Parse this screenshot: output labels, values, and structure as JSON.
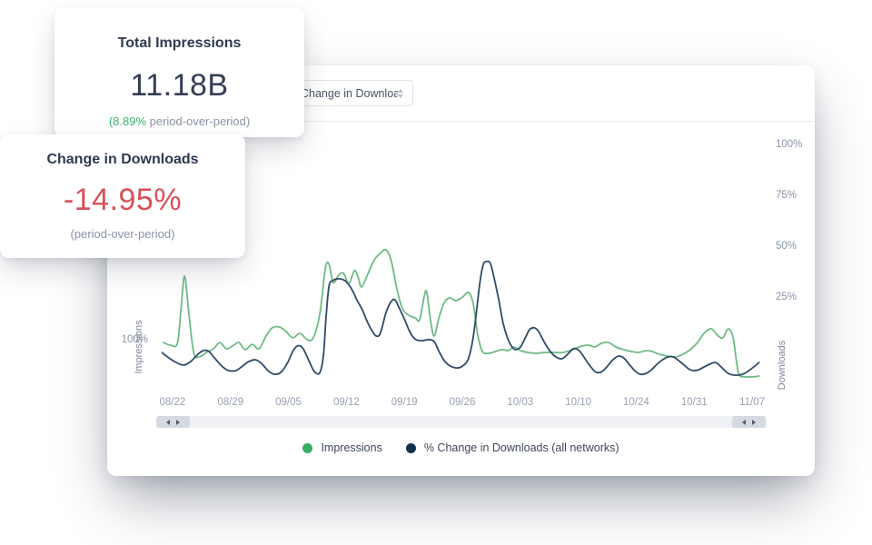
{
  "cards": {
    "impressions": {
      "title": "Total Impressions",
      "value": "11.18B",
      "change_value": "(8.89%",
      "change_suffix": " period-over-period)"
    },
    "downloads": {
      "title": "Change in Downloads",
      "value": "-14.95%",
      "subtitle": "(period-over-period)"
    }
  },
  "panel": {
    "dropdown": {
      "value": "Change in Downloads"
    },
    "left_axis": {
      "tick": "100%",
      "label": "Impressions"
    },
    "right_axis": {
      "label": "Downloads",
      "ticks": [
        {
          "label": "100%",
          "value": 100
        },
        {
          "label": "75%",
          "value": 75
        },
        {
          "label": "50%",
          "value": 50
        },
        {
          "label": "25%",
          "value": 25
        }
      ]
    },
    "legend": [
      {
        "label": "Impressions",
        "color": "#36ae66"
      },
      {
        "label": "% Change in Downloads (all networks)",
        "color": "#14324f"
      }
    ]
  },
  "chart_data": {
    "type": "line",
    "title": "",
    "x_ticks": [
      "08/22",
      "08/29",
      "09/05",
      "09/12",
      "09/19",
      "09/26",
      "10/03",
      "10/10",
      "10/24",
      "10/31",
      "11/07"
    ],
    "y_axis_right": {
      "unit": "%",
      "ticks": [
        100,
        75,
        50,
        25
      ],
      "range": [
        -20,
        110
      ]
    },
    "grid": false,
    "legend_position": "bottom",
    "series": [
      {
        "name": "Impressions",
        "axis": "left",
        "color": "#6fba86",
        "points": [
          [
            0.3,
            3.1
          ],
          [
            1.5,
            1.8
          ],
          [
            2.6,
            2.7
          ],
          [
            3.2,
            19.6
          ],
          [
            3.8,
            35.7
          ],
          [
            4.5,
            17.4
          ],
          [
            5.3,
            -1.8
          ],
          [
            6.2,
            -4
          ],
          [
            7.4,
            -1.8
          ],
          [
            8.6,
            0
          ],
          [
            9.6,
            3.1
          ],
          [
            10.7,
            0
          ],
          [
            11.7,
            1.3
          ],
          [
            12.8,
            3.1
          ],
          [
            13.8,
            -0.4
          ],
          [
            15,
            2.2
          ],
          [
            16.1,
            0
          ],
          [
            17.3,
            6.3
          ],
          [
            18.3,
            10.3
          ],
          [
            19.5,
            10.7
          ],
          [
            20.6,
            8.5
          ],
          [
            21.7,
            5.4
          ],
          [
            22.9,
            7.6
          ],
          [
            24.1,
            4.5
          ],
          [
            25.1,
            5.4
          ],
          [
            26.2,
            17.4
          ],
          [
            27.1,
            39.7
          ],
          [
            27.7,
            41.5
          ],
          [
            28.4,
            32.6
          ],
          [
            29.3,
            36.2
          ],
          [
            30.1,
            37.1
          ],
          [
            31,
            32.1
          ],
          [
            31.9,
            38.4
          ],
          [
            32.5,
            35.3
          ],
          [
            33.1,
            30.4
          ],
          [
            34.1,
            36.6
          ],
          [
            35.2,
            43.8
          ],
          [
            36.2,
            46.9
          ],
          [
            37.1,
            48.7
          ],
          [
            38,
            43.3
          ],
          [
            38.9,
            29.9
          ],
          [
            39.8,
            20.1
          ],
          [
            40.9,
            16.5
          ],
          [
            42,
            15.2
          ],
          [
            42.7,
            14.3
          ],
          [
            43.5,
            26.3
          ],
          [
            43.9,
            27.7
          ],
          [
            44.5,
            14.3
          ],
          [
            45.1,
            6.3
          ],
          [
            45.9,
            15.2
          ],
          [
            46.8,
            22.8
          ],
          [
            47.7,
            25
          ],
          [
            48.7,
            23.7
          ],
          [
            49.8,
            25.4
          ],
          [
            50.8,
            27.7
          ],
          [
            51.6,
            21.9
          ],
          [
            52.3,
            7.1
          ],
          [
            53.1,
            -1.3
          ],
          [
            54.1,
            -2.2
          ],
          [
            55.3,
            -1.3
          ],
          [
            56.4,
            -0.4
          ],
          [
            57.4,
            -0.9
          ],
          [
            58.3,
            0.9
          ],
          [
            59.4,
            -0.9
          ],
          [
            60.6,
            -1.8
          ],
          [
            61.9,
            -2.2
          ],
          [
            63.5,
            -1.8
          ],
          [
            65,
            -1.8
          ],
          [
            66.5,
            -1.8
          ],
          [
            68,
            -0.4
          ],
          [
            69.5,
            1.3
          ],
          [
            70.7,
            1.8
          ],
          [
            71.7,
            0.9
          ],
          [
            72.8,
            2.7
          ],
          [
            74,
            3.1
          ],
          [
            75.2,
            0.9
          ],
          [
            76.5,
            -0.4
          ],
          [
            77.7,
            -1.3
          ],
          [
            78.9,
            -1.8
          ],
          [
            80.2,
            -0.9
          ],
          [
            81.2,
            -1.3
          ],
          [
            82.4,
            -2.7
          ],
          [
            83.8,
            -3.6
          ],
          [
            85,
            -4
          ],
          [
            86.3,
            -2.7
          ],
          [
            87.5,
            -0.4
          ],
          [
            88.7,
            3.1
          ],
          [
            89.9,
            8
          ],
          [
            91,
            9.8
          ],
          [
            92,
            6.7
          ],
          [
            92.9,
            5.4
          ],
          [
            93.8,
            9.8
          ],
          [
            94.6,
            5.4
          ],
          [
            95.2,
            -7.1
          ],
          [
            95.6,
            -12.9
          ],
          [
            96.5,
            -13.8
          ],
          [
            97.7,
            -13.8
          ],
          [
            98.9,
            -13.4
          ]
        ]
      },
      {
        "name": "% Change in Downloads (all networks)",
        "axis": "right",
        "color": "#2e4b68",
        "points": [
          [
            0,
            -1.8
          ],
          [
            1.2,
            -4.5
          ],
          [
            2.4,
            -6.7
          ],
          [
            3.6,
            -8
          ],
          [
            4.8,
            -6.3
          ],
          [
            6,
            -2.7
          ],
          [
            6.9,
            -0.9
          ],
          [
            7.8,
            -1.3
          ],
          [
            9,
            -5.4
          ],
          [
            10.1,
            -8.9
          ],
          [
            11.1,
            -10.7
          ],
          [
            12.3,
            -10.7
          ],
          [
            13.4,
            -8.5
          ],
          [
            14.4,
            -6.3
          ],
          [
            15.5,
            -5.4
          ],
          [
            16.5,
            -7.1
          ],
          [
            17.6,
            -10.7
          ],
          [
            18.6,
            -12.5
          ],
          [
            19.7,
            -11.6
          ],
          [
            20.8,
            -7.1
          ],
          [
            21.7,
            -1.3
          ],
          [
            22.4,
            1.3
          ],
          [
            23.2,
            0.9
          ],
          [
            23.9,
            -2.7
          ],
          [
            24.7,
            -8
          ],
          [
            25.4,
            -11.6
          ],
          [
            26.2,
            -11.6
          ],
          [
            26.8,
            -2.7
          ],
          [
            27.2,
            15.2
          ],
          [
            27.7,
            30.8
          ],
          [
            28.3,
            33.5
          ],
          [
            29.2,
            34.4
          ],
          [
            30.1,
            33.9
          ],
          [
            30.8,
            32.1
          ],
          [
            31.6,
            28.6
          ],
          [
            32.3,
            24.1
          ],
          [
            33.2,
            19.2
          ],
          [
            34.1,
            12.9
          ],
          [
            34.9,
            8.5
          ],
          [
            35.5,
            6.3
          ],
          [
            36.2,
            7.6
          ],
          [
            37.1,
            17.4
          ],
          [
            37.9,
            22.8
          ],
          [
            38.6,
            24.1
          ],
          [
            39.4,
            19.6
          ],
          [
            40.3,
            13.8
          ],
          [
            41.2,
            7.6
          ],
          [
            42.1,
            4.5
          ],
          [
            43.2,
            4
          ],
          [
            44.2,
            4.5
          ],
          [
            45.1,
            3.6
          ],
          [
            46,
            -1.8
          ],
          [
            46.9,
            -6.3
          ],
          [
            47.8,
            -8.5
          ],
          [
            48.9,
            -9.4
          ],
          [
            49.8,
            -8.5
          ],
          [
            50.7,
            -5.4
          ],
          [
            51.4,
            2.7
          ],
          [
            52,
            15.2
          ],
          [
            52.6,
            30.8
          ],
          [
            53.2,
            41.1
          ],
          [
            53.8,
            42.9
          ],
          [
            54.4,
            42
          ],
          [
            55,
            35.3
          ],
          [
            55.8,
            24.1
          ],
          [
            56.5,
            12.9
          ],
          [
            57.3,
            4.9
          ],
          [
            58,
            0.9
          ],
          [
            58.6,
            -0.4
          ],
          [
            59.4,
            0.9
          ],
          [
            60.2,
            5.4
          ],
          [
            60.9,
            9.4
          ],
          [
            61.7,
            10.3
          ],
          [
            62.4,
            8.5
          ],
          [
            63.2,
            4
          ],
          [
            64.1,
            -0.4
          ],
          [
            65.1,
            -3.6
          ],
          [
            66.2,
            -4.9
          ],
          [
            67.2,
            -2.7
          ],
          [
            68.1,
            0
          ],
          [
            68.9,
            -0.4
          ],
          [
            69.6,
            -2.7
          ],
          [
            70.5,
            -6.7
          ],
          [
            71.3,
            -9.8
          ],
          [
            72,
            -11.6
          ],
          [
            72.9,
            -11.2
          ],
          [
            73.8,
            -8.5
          ],
          [
            74.7,
            -5.4
          ],
          [
            75.6,
            -3.6
          ],
          [
            76.5,
            -4.5
          ],
          [
            77.4,
            -7.6
          ],
          [
            78.3,
            -10.7
          ],
          [
            79.2,
            -12.5
          ],
          [
            80.2,
            -12.1
          ],
          [
            81.1,
            -10.3
          ],
          [
            82,
            -7.6
          ],
          [
            82.9,
            -5.4
          ],
          [
            83.8,
            -4
          ],
          [
            84.7,
            -4
          ],
          [
            85.6,
            -5.8
          ],
          [
            86.5,
            -8
          ],
          [
            87.2,
            -9.8
          ],
          [
            88,
            -10.7
          ],
          [
            88.9,
            -10.3
          ],
          [
            89.8,
            -8.9
          ],
          [
            90.7,
            -7.6
          ],
          [
            91.6,
            -6.7
          ],
          [
            92.3,
            -8
          ],
          [
            93.1,
            -10.3
          ],
          [
            93.8,
            -12.1
          ],
          [
            94.7,
            -12.9
          ],
          [
            95.6,
            -12.9
          ],
          [
            96.5,
            -12.1
          ],
          [
            97.4,
            -10.3
          ],
          [
            98.2,
            -8.5
          ],
          [
            98.9,
            -6.7
          ]
        ]
      }
    ]
  }
}
